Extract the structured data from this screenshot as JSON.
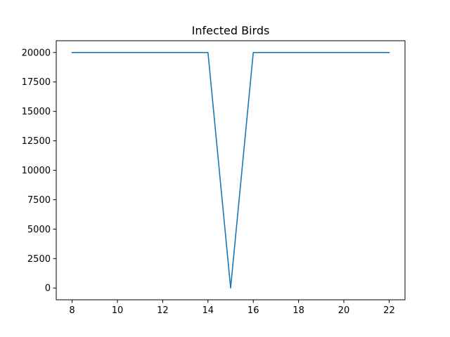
{
  "chart_data": {
    "type": "line",
    "title": "Infected Birds",
    "xlabel": "",
    "ylabel": "",
    "xlim": [
      7.3,
      22.7
    ],
    "ylim": [
      -1000,
      21000
    ],
    "xticks": [
      8,
      10,
      12,
      14,
      16,
      18,
      20,
      22
    ],
    "xtick_labels": [
      "8",
      "10",
      "12",
      "14",
      "16",
      "18",
      "20",
      "22"
    ],
    "yticks": [
      0,
      2500,
      5000,
      7500,
      10000,
      12500,
      15000,
      17500,
      20000
    ],
    "ytick_labels": [
      "0",
      "2500",
      "5000",
      "7500",
      "10000",
      "12500",
      "15000",
      "17500",
      "20000"
    ],
    "grid": false,
    "legend": "none",
    "series": [
      {
        "color": "#1f77b4",
        "x": [
          8,
          9,
          10,
          11,
          12,
          13,
          14,
          15,
          16,
          17,
          18,
          19,
          20,
          21,
          22
        ],
        "y": [
          20000,
          20000,
          20000,
          20000,
          20000,
          20000,
          20000,
          0,
          20000,
          20000,
          20000,
          20000,
          20000,
          20000,
          20000
        ]
      }
    ]
  }
}
